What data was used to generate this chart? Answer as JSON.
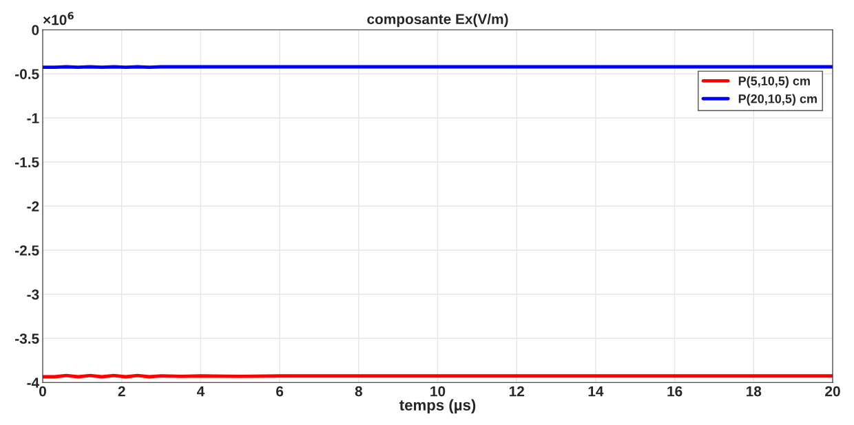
{
  "chart_data": {
    "type": "line",
    "title": "composante Ex(V/m)",
    "xlabel": "temps (µs)",
    "annotations": [
      "×10$^{6}$"
    ],
    "x": [
      0,
      0.3,
      0.6,
      0.9,
      1.2,
      1.5,
      1.8,
      2.1,
      2.4,
      2.7,
      3,
      3.5,
      4,
      5,
      6,
      8,
      10,
      14,
      20
    ],
    "series": [
      {
        "name": "P(5,10,5) cm",
        "color": "#ff0000",
        "values": [
          -3.935,
          -3.935,
          -3.92,
          -3.935,
          -3.92,
          -3.935,
          -3.92,
          -3.935,
          -3.92,
          -3.935,
          -3.925,
          -3.93,
          -3.925,
          -3.93,
          -3.925,
          -3.925,
          -3.925,
          -3.925,
          -3.925
        ]
      },
      {
        "name": "P(20,10,5) cm",
        "color": "#0000ff",
        "values": [
          -0.425,
          -0.425,
          -0.42,
          -0.425,
          -0.42,
          -0.425,
          -0.42,
          -0.425,
          -0.42,
          -0.425,
          -0.42,
          -0.42,
          -0.42,
          -0.42,
          -0.42,
          -0.42,
          -0.42,
          -0.42,
          -0.42
        ]
      }
    ],
    "xlim": [
      0,
      20
    ],
    "ylim": [
      -4,
      0
    ],
    "xticks": [
      0,
      2,
      4,
      6,
      8,
      10,
      12,
      14,
      16,
      18,
      20
    ],
    "yticks": [
      -4,
      -3.5,
      -3,
      -2.5,
      -2,
      -1.5,
      -1,
      -0.5,
      0
    ],
    "grid": true,
    "legend": "top right",
    "line_style": "solid",
    "marker": "none"
  }
}
